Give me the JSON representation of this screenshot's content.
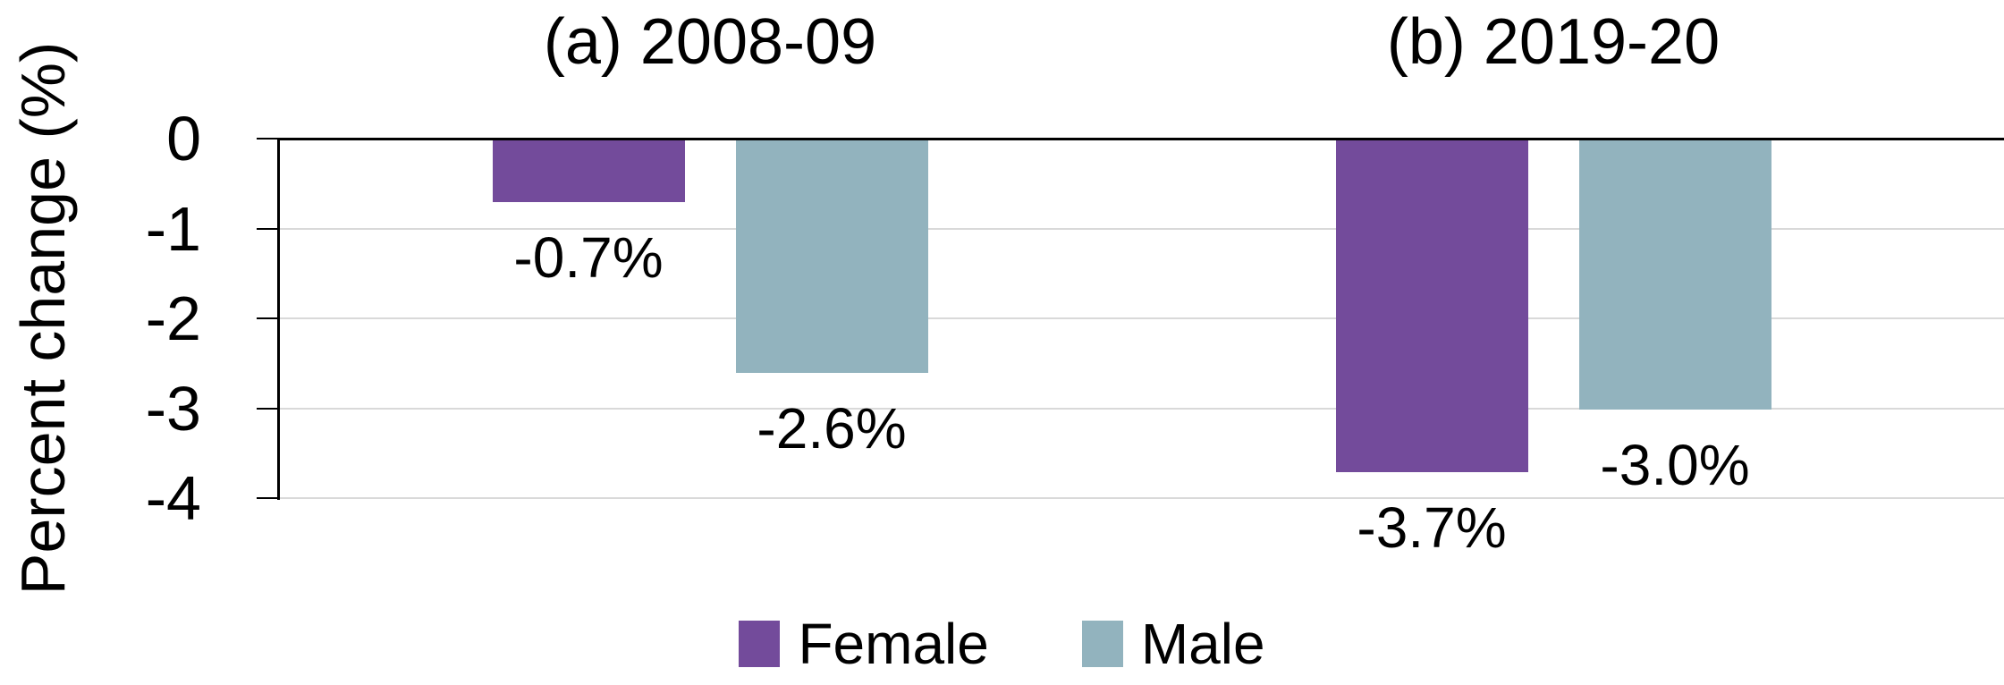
{
  "chart_data": {
    "type": "bar",
    "title": "",
    "ylabel": "Percent change (%)",
    "xlabel": "",
    "ylim": [
      -4,
      0
    ],
    "y_ticks": [
      0,
      -1,
      -2,
      -3,
      -4
    ],
    "y_tick_labels": [
      "0",
      "-1",
      "-2",
      "-3",
      "-4"
    ],
    "grid": true,
    "legend_position": "bottom-center",
    "categories": [
      "(a) 2008-09",
      "(b) 2019-20"
    ],
    "series": [
      {
        "name": "Female",
        "color": "#734b9b",
        "values": [
          -0.7,
          -3.7
        ],
        "data_labels": [
          "-0.7%",
          "-3.7%"
        ]
      },
      {
        "name": "Male",
        "color": "#92b3be",
        "values": [
          -2.6,
          -3.0
        ],
        "data_labels": [
          "-2.6%",
          "-3.0%"
        ]
      }
    ]
  },
  "colors": {
    "background": "#ffffff",
    "gridline": "#d9d9d9",
    "zero_line": "#000000",
    "axis": "#000000",
    "text": "#000000"
  }
}
